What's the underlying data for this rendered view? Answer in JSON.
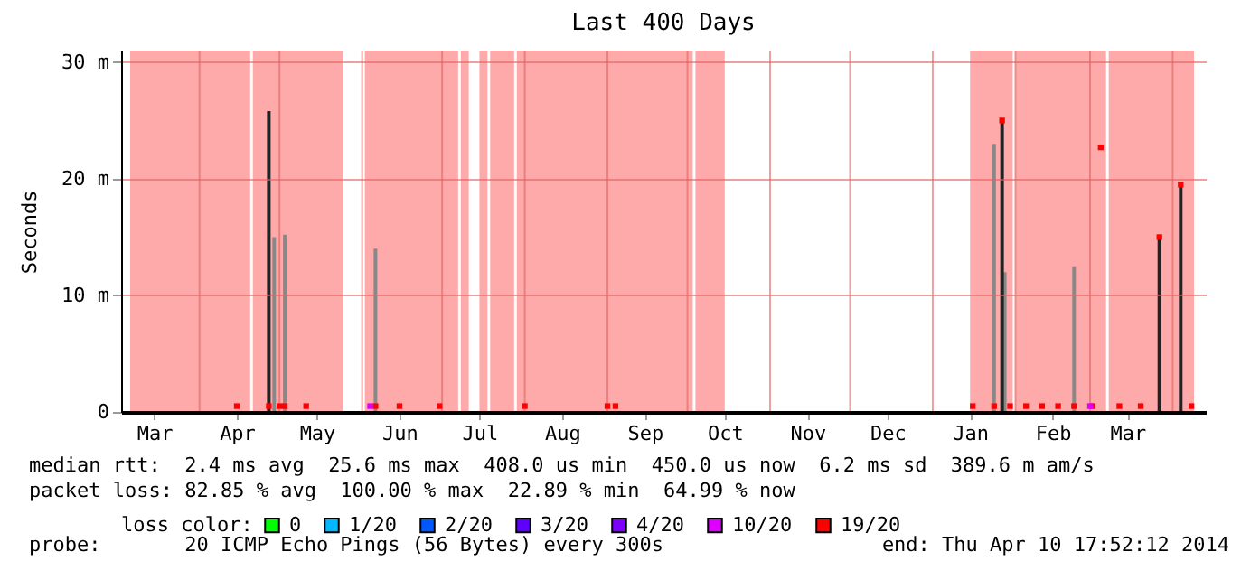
{
  "chart_data": {
    "type": "bar",
    "title": "Last 400 Days",
    "ylabel": "Seconds",
    "legend_title": "loss color:",
    "legend": "bottom",
    "marker": "square",
    "grid": true,
    "xlim": [
      "2013-03-06",
      "2014-04-10"
    ],
    "ylim": [
      0,
      31
    ],
    "xticks": [
      {
        "value": "2013-03-15",
        "label": "Mar"
      },
      {
        "value": "2013-04-01",
        "label": null
      },
      {
        "value": "2013-04-15",
        "label": "Apr"
      },
      {
        "value": "2013-05-01",
        "label": null
      },
      {
        "value": "2013-05-15",
        "label": "May"
      },
      {
        "value": "2013-06-01",
        "label": null
      },
      {
        "value": "2013-06-15",
        "label": "Jun"
      },
      {
        "value": "2013-07-01",
        "label": null
      },
      {
        "value": "2013-07-15",
        "label": "Jul"
      },
      {
        "value": "2013-08-01",
        "label": null
      },
      {
        "value": "2013-08-15",
        "label": "Aug"
      },
      {
        "value": "2013-09-01",
        "label": null
      },
      {
        "value": "2013-09-15",
        "label": "Sep"
      },
      {
        "value": "2013-10-01",
        "label": null
      },
      {
        "value": "2013-10-15",
        "label": "Oct"
      },
      {
        "value": "2013-11-01",
        "label": null
      },
      {
        "value": "2013-11-15",
        "label": "Nov"
      },
      {
        "value": "2013-12-01",
        "label": null
      },
      {
        "value": "2013-12-15",
        "label": "Dec"
      },
      {
        "value": "2014-01-01",
        "label": null
      },
      {
        "value": "2014-01-15",
        "label": "Jan"
      },
      {
        "value": "2014-02-01",
        "label": null
      },
      {
        "value": "2014-02-15",
        "label": "Feb"
      },
      {
        "value": "2014-03-01",
        "label": null
      },
      {
        "value": "2014-03-15",
        "label": "Mar"
      },
      {
        "value": "2014-04-01",
        "label": null
      }
    ],
    "yticks": [
      {
        "value": 0,
        "label": "0"
      },
      {
        "value": 10,
        "label": "10 m"
      },
      {
        "value": 20,
        "label": "20 m"
      },
      {
        "value": 30,
        "label": "30 m"
      }
    ],
    "bands": [
      {
        "axis": "x",
        "from": "2013-03-06",
        "to": "2013-04-20",
        "color": "#ffaaaa"
      },
      {
        "axis": "x",
        "from": "2013-04-21",
        "to": "2013-05-25",
        "color": "#ffaaaa"
      },
      {
        "axis": "x",
        "from": "2013-06-02",
        "to": "2013-07-07",
        "color": "#ffaaaa"
      },
      {
        "axis": "x",
        "from": "2013-07-08",
        "to": "2013-07-11",
        "color": "#ffaaaa"
      },
      {
        "axis": "x",
        "from": "2013-07-15",
        "to": "2013-07-18",
        "color": "#ffaaaa"
      },
      {
        "axis": "x",
        "from": "2013-07-19",
        "to": "2013-07-28",
        "color": "#ffaaaa"
      },
      {
        "axis": "x",
        "from": "2013-07-29",
        "to": "2013-10-03",
        "color": "#ffaaaa"
      },
      {
        "axis": "x",
        "from": "2013-10-04",
        "to": "2013-10-15",
        "color": "#ffaaaa"
      },
      {
        "axis": "x",
        "from": "2014-01-15",
        "to": "2014-01-31",
        "color": "#ffaaaa"
      },
      {
        "axis": "x",
        "from": "2014-02-01",
        "to": "2014-03-07",
        "color": "#ffaaaa"
      },
      {
        "axis": "x",
        "from": "2014-03-08",
        "to": "2014-04-09",
        "color": "#ffaaaa"
      }
    ],
    "series": [
      {
        "color": "#888888",
        "x": [
          "2013-04-29",
          "2013-05-03",
          "2013-06-06",
          "2014-01-24",
          "2014-01-28",
          "2014-02-23"
        ],
        "values": [
          15,
          15.2,
          14,
          23,
          12,
          12.5
        ]
      },
      {
        "color": "#222222",
        "x": [
          "2013-04-27",
          "2014-01-27",
          "2014-03-27",
          "2014-04-04"
        ],
        "values": [
          25.8,
          25,
          15,
          19.5
        ]
      },
      {
        "type": "scatter",
        "name": "0",
        "color": "#00ff00"
      },
      {
        "type": "scatter",
        "name": "1/20",
        "color": "#00b8ff"
      },
      {
        "type": "scatter",
        "name": "2/20",
        "color": "#0059ff"
      },
      {
        "type": "scatter",
        "name": "3/20",
        "color": "#5e00ff"
      },
      {
        "type": "scatter",
        "name": "4/20",
        "color": "#7e00ff"
      },
      {
        "type": "scatter",
        "name": "10/20",
        "color": "#dd00ff",
        "x": [
          "2013-06-04",
          "2014-03-01"
        ],
        "values": [
          0.5,
          0.5
        ]
      },
      {
        "type": "scatter",
        "name": "19/20",
        "color": "#ff0000",
        "x": [
          "2013-04-15",
          "2013-04-27",
          "2013-05-01",
          "2013-05-03",
          "2013-05-11",
          "2013-06-06",
          "2013-06-15",
          "2013-06-30",
          "2013-08-01",
          "2013-09-01",
          "2013-09-04",
          "2014-01-16",
          "2014-01-24",
          "2014-01-27",
          "2014-01-30",
          "2014-02-05",
          "2014-02-11",
          "2014-02-17",
          "2014-02-23",
          "2014-03-02",
          "2014-03-05",
          "2014-03-12",
          "2014-03-20",
          "2014-03-27",
          "2014-04-04",
          "2014-04-08"
        ],
        "values": [
          0.5,
          0.5,
          0.5,
          0.5,
          0.5,
          0.5,
          0.5,
          0.5,
          0.5,
          0.5,
          0.5,
          0.5,
          0.5,
          25,
          0.5,
          0.5,
          0.5,
          0.5,
          0.5,
          0.5,
          22.7,
          0.5,
          0.5,
          15,
          19.5,
          0.5
        ]
      }
    ],
    "annotations": [
      "median rtt:  2.4 ms avg  25.6 ms max  408.0 us min  450.0 us now  6.2 ms sd  389.6 m am/s",
      "packet loss: 82.85 % avg  100.00 % max  22.89 % min  64.99 % now",
      "probe:       20 ICMP Echo Pings (56 Bytes) every 300s",
      "end: Thu Apr 10 17:52:12 2014"
    ]
  }
}
